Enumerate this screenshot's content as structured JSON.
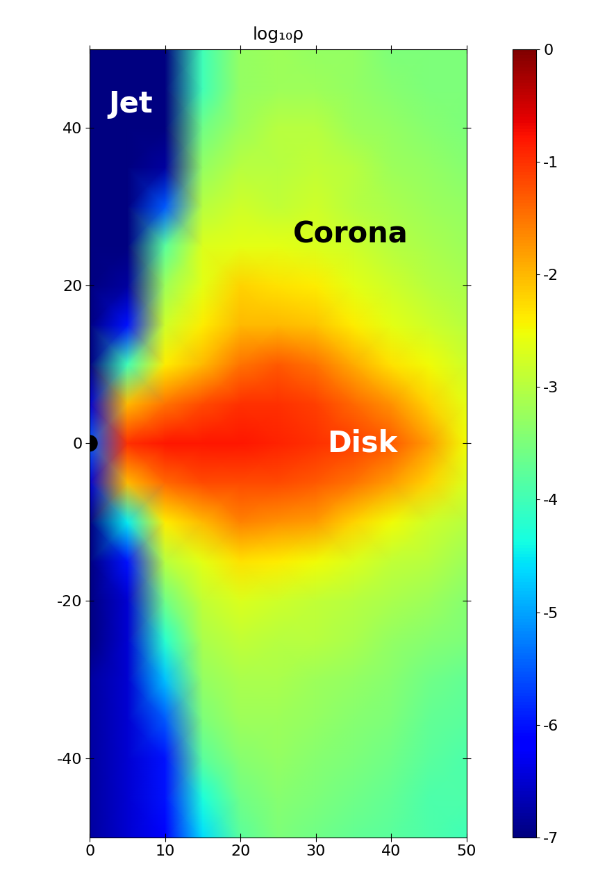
{
  "chart_data": {
    "type": "heatmap",
    "title": "log₁₀ρ",
    "color": "jet",
    "x": [
      0,
      5,
      10,
      15,
      20,
      25,
      30,
      35,
      40,
      45,
      50
    ],
    "y": [
      50,
      45,
      40,
      35,
      30,
      25,
      20,
      15,
      10,
      5,
      0,
      -5,
      -10,
      -15,
      -20,
      -25,
      -30,
      -35,
      -40,
      -45,
      -50
    ],
    "cells": [
      [
        -7,
        -7,
        -7,
        -4.0,
        -3.3,
        -3.2,
        -3.3,
        -3.3,
        -3.5,
        -3.5,
        -3.5
      ],
      [
        -7,
        -7,
        -7,
        -4.0,
        -3.3,
        -3.2,
        -3.2,
        -3.3,
        -3.4,
        -3.5,
        -3.5
      ],
      [
        -7,
        -7,
        -7,
        -3.6,
        -3.2,
        -3.0,
        -3.0,
        -3.2,
        -3.3,
        -3.4,
        -3.5
      ],
      [
        -7,
        -7,
        -6.8,
        -3.3,
        -3.0,
        -3.0,
        -2.9,
        -3.0,
        -3.2,
        -3.3,
        -3.4
      ],
      [
        -7,
        -7,
        -5.5,
        -3.0,
        -2.8,
        -2.9,
        -2.8,
        -3.0,
        -3.1,
        -3.2,
        -3.3
      ],
      [
        -7,
        -7,
        -3.8,
        -2.7,
        -2.6,
        -2.6,
        -2.7,
        -2.8,
        -3.0,
        -3.1,
        -3.2
      ],
      [
        -7,
        -6.8,
        -3.2,
        -2.6,
        -2.2,
        -2.3,
        -2.4,
        -2.6,
        -2.8,
        -3.0,
        -3.1
      ],
      [
        -7,
        -6.0,
        -2.8,
        -2.4,
        -2.0,
        -2.0,
        -2.1,
        -2.4,
        -2.6,
        -2.8,
        -3.0
      ],
      [
        -7,
        -4.0,
        -2.4,
        -2.0,
        -1.5,
        -1.3,
        -1.5,
        -1.9,
        -2.3,
        -2.5,
        -2.8
      ],
      [
        -6.5,
        -2.0,
        -1.5,
        -1.2,
        -1.0,
        -1.0,
        -1.1,
        -1.4,
        -1.7,
        -2.2,
        -2.6
      ],
      [
        -5.5,
        -1.0,
        -0.8,
        -0.8,
        -0.8,
        -0.9,
        -1.0,
        -1.1,
        -1.3,
        -1.8,
        -2.5
      ],
      [
        -6.5,
        -2.0,
        -1.4,
        -1.2,
        -1.2,
        -1.2,
        -1.3,
        -1.5,
        -1.8,
        -2.2,
        -2.7
      ],
      [
        -7,
        -4.5,
        -2.4,
        -2.0,
        -1.6,
        -1.7,
        -1.8,
        -2.2,
        -2.5,
        -2.8,
        -3.0
      ],
      [
        -7,
        -6.0,
        -3.0,
        -2.6,
        -2.3,
        -2.4,
        -2.5,
        -2.7,
        -2.9,
        -3.0,
        -3.2
      ],
      [
        -7,
        -6.5,
        -3.6,
        -2.9,
        -2.7,
        -2.8,
        -2.9,
        -3.0,
        -3.1,
        -3.2,
        -3.4
      ],
      [
        -7,
        -6.5,
        -4.2,
        -3.1,
        -2.9,
        -3.0,
        -3.0,
        -3.1,
        -3.3,
        -3.4,
        -3.5
      ],
      [
        -6.8,
        -6.5,
        -4.8,
        -3.3,
        -3.1,
        -3.1,
        -3.2,
        -3.3,
        -3.4,
        -3.6,
        -3.7
      ],
      [
        -6.8,
        -6.5,
        -5.5,
        -3.5,
        -3.2,
        -3.2,
        -3.3,
        -3.4,
        -3.5,
        -3.7,
        -3.8
      ],
      [
        -6.8,
        -6.5,
        -6.0,
        -3.8,
        -3.4,
        -3.3,
        -3.4,
        -3.5,
        -3.6,
        -3.8,
        -3.9
      ],
      [
        -6.8,
        -6.5,
        -6.0,
        -4.3,
        -3.6,
        -3.4,
        -3.5,
        -3.6,
        -3.7,
        -3.9,
        -3.9
      ],
      [
        -6.8,
        -6.5,
        -6.2,
        -4.6,
        -3.8,
        -3.5,
        -3.6,
        -3.7,
        -3.8,
        -3.9,
        -4.0
      ]
    ],
    "xlim": [
      0,
      50
    ],
    "ylim": [
      -50,
      50
    ],
    "xticks": [
      0,
      10,
      20,
      30,
      40,
      50
    ],
    "yticks": [
      -40,
      -20,
      0,
      20,
      40
    ],
    "colorbar_range": [
      -7,
      0
    ],
    "colorbar_ticks": [
      0,
      -1,
      -2,
      -3,
      -4,
      -5,
      -6,
      -7
    ],
    "annotations": [
      {
        "text": "Jet",
        "color": "white"
      },
      {
        "text": "Corona",
        "color": "black"
      },
      {
        "text": "Disk",
        "color": "white"
      }
    ]
  }
}
